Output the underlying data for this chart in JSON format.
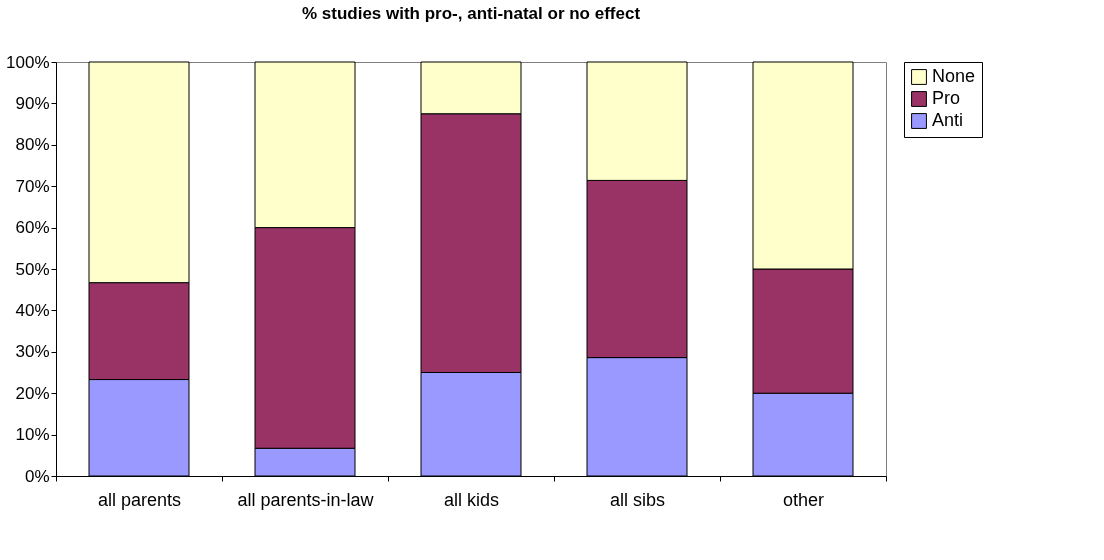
{
  "chart_data": {
    "type": "bar",
    "title": "% studies with pro-, anti-natal or no effect",
    "categories": [
      "all parents",
      "all parents-in-law",
      "all kids",
      "all sibs",
      "other"
    ],
    "stacked": true,
    "series": [
      {
        "name": "Anti",
        "color": "#9999ff",
        "values": [
          23.3,
          6.7,
          25,
          28.6,
          20
        ]
      },
      {
        "name": "Pro",
        "color": "#993366",
        "values": [
          23.4,
          53.3,
          62.5,
          42.8,
          30
        ]
      },
      {
        "name": "None",
        "color": "#ffffcc",
        "values": [
          53.3,
          40,
          12.5,
          28.6,
          50
        ]
      }
    ],
    "ylim": [
      0,
      100
    ],
    "yticks": [
      {
        "value": 0,
        "label": "0%"
      },
      {
        "value": 10,
        "label": "10%"
      },
      {
        "value": 20,
        "label": "20%"
      },
      {
        "value": 30,
        "label": "30%"
      },
      {
        "value": 40,
        "label": "40%"
      },
      {
        "value": 50,
        "label": "50%"
      },
      {
        "value": 60,
        "label": "60%"
      },
      {
        "value": 70,
        "label": "70%"
      },
      {
        "value": 80,
        "label": "80%"
      },
      {
        "value": 90,
        "label": "90%"
      },
      {
        "value": 100,
        "label": "100%"
      }
    ],
    "grid": false,
    "legend": "right"
  }
}
